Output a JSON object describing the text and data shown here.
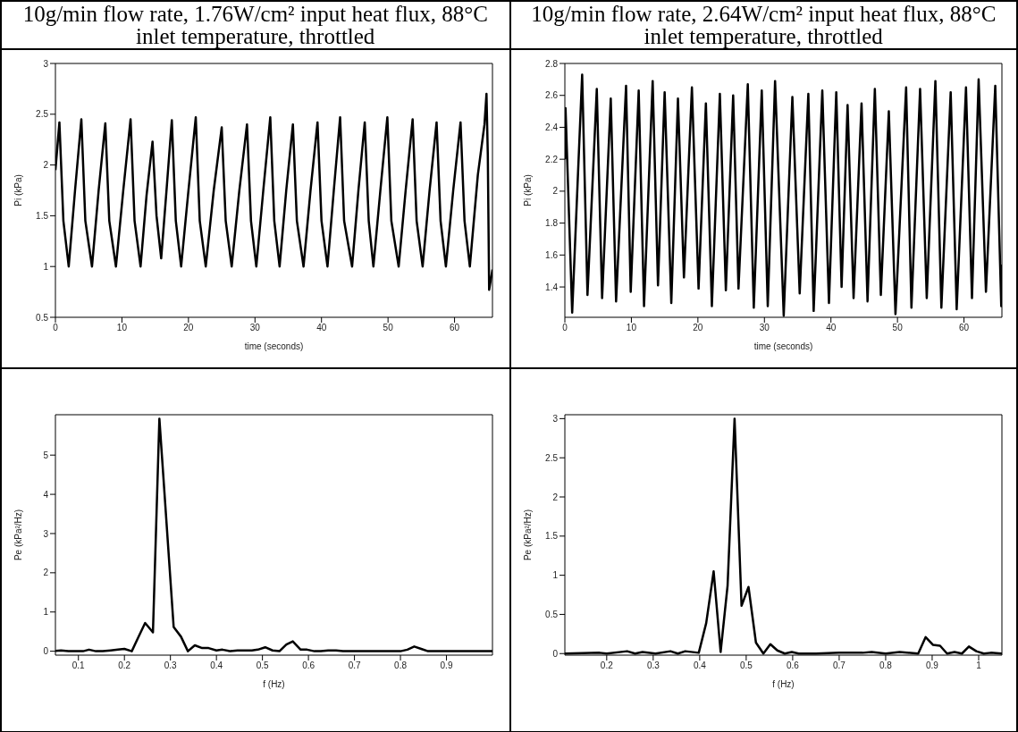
{
  "chart_data": [
    {
      "type": "line",
      "title": "10g/min flow rate, 1.76W/cm² input heat flux, 88°C inlet temperature, throttled",
      "xlabel": "time (seconds)",
      "ylabel": "Pi (kPa)",
      "xlim": [
        0,
        65.7
      ],
      "xticks": [
        0,
        10,
        20,
        30,
        40,
        50,
        60
      ],
      "ylim": [
        0.5,
        3
      ],
      "yticks": [
        0.5,
        1,
        1.5,
        2,
        2.5,
        3
      ],
      "color": "#000000",
      "x": [
        0,
        0.6,
        1.2,
        2.0,
        2.95,
        3.9,
        4.5,
        5.5,
        6.5,
        7.5,
        8.1,
        9.1,
        10.2,
        11.3,
        11.9,
        12.8,
        13.7,
        14.6,
        15.2,
        15.9,
        16.7,
        17.5,
        18.1,
        18.9,
        20.0,
        21.1,
        21.7,
        22.6,
        23.8,
        25.0,
        25.6,
        26.5,
        27.65,
        28.8,
        29.4,
        30.2,
        31.25,
        32.3,
        32.9,
        33.7,
        34.7,
        35.7,
        36.3,
        37.3,
        38.35,
        39.4,
        40.0,
        40.9,
        41.85,
        42.8,
        43.4,
        44.6,
        45.55,
        46.5,
        47.1,
        47.8,
        48.85,
        49.9,
        50.5,
        51.6,
        52.65,
        53.7,
        54.3,
        55.2,
        56.25,
        57.3,
        57.9,
        58.7,
        59.8,
        60.9,
        61.5,
        62.3,
        63.5,
        64.5,
        64.8,
        65.0,
        65.2,
        65.7
      ],
      "values": [
        1.95,
        2.42,
        1.45,
        1.0,
        1.75,
        2.45,
        1.45,
        1.0,
        1.75,
        2.41,
        1.45,
        1.0,
        1.75,
        2.45,
        1.45,
        1.0,
        1.7,
        2.23,
        1.5,
        1.08,
        1.75,
        2.44,
        1.45,
        1.0,
        1.75,
        2.47,
        1.45,
        1.0,
        1.75,
        2.37,
        1.45,
        1.0,
        1.75,
        2.4,
        1.45,
        1.0,
        1.75,
        2.47,
        1.45,
        1.0,
        1.75,
        2.4,
        1.45,
        1.0,
        1.75,
        2.42,
        1.45,
        1.0,
        1.75,
        2.47,
        1.45,
        1.0,
        1.75,
        2.42,
        1.45,
        1.0,
        1.75,
        2.47,
        1.45,
        1.0,
        1.75,
        2.45,
        1.45,
        1.0,
        1.75,
        2.42,
        1.45,
        1.0,
        1.75,
        2.42,
        1.45,
        1.0,
        1.9,
        2.4,
        2.7,
        2.1,
        0.77,
        0.97
      ]
    },
    {
      "type": "line",
      "title": "10g/min flow rate, 2.64W/cm² input heat flux, 88°C inlet temperature, throttled",
      "xlabel": "time (seconds)",
      "ylabel": "Pi (kPa)",
      "xlim": [
        0,
        65.7
      ],
      "xticks": [
        0,
        10,
        20,
        30,
        40,
        50,
        60
      ],
      "ylim": [
        1.21,
        2.8
      ],
      "yticks": [
        1.4,
        1.6,
        1.8,
        2,
        2.2,
        2.4,
        2.6,
        2.8
      ],
      "color": "#000000",
      "x": [
        0,
        0.1,
        1.1,
        2.6,
        3.4,
        4.8,
        5.6,
        6.9,
        7.7,
        9.2,
        9.9,
        11.1,
        11.9,
        13.2,
        14.0,
        15.0,
        16.0,
        17.0,
        17.9,
        19.1,
        20.1,
        21.2,
        22.1,
        23.3,
        24.2,
        25.3,
        26.1,
        27.5,
        28.4,
        29.6,
        30.5,
        31.6,
        32.9,
        34.2,
        35.3,
        36.6,
        37.4,
        38.7,
        39.7,
        40.8,
        41.6,
        42.5,
        43.4,
        44.6,
        45.5,
        46.6,
        47.5,
        48.7,
        49.7,
        51.3,
        52.1,
        53.4,
        54.4,
        55.7,
        56.6,
        58.0,
        58.9,
        60.3,
        61.2,
        62.2,
        63.3,
        64.7,
        65.6,
        65.7
      ],
      "values": [
        2.2,
        2.52,
        1.24,
        2.73,
        1.35,
        2.64,
        1.33,
        2.58,
        1.31,
        2.66,
        1.37,
        2.63,
        1.28,
        2.69,
        1.41,
        2.62,
        1.3,
        2.58,
        1.46,
        2.65,
        1.39,
        2.55,
        1.28,
        2.61,
        1.38,
        2.6,
        1.39,
        2.67,
        1.27,
        2.63,
        1.28,
        2.69,
        1.22,
        2.59,
        1.36,
        2.61,
        1.25,
        2.63,
        1.3,
        2.62,
        1.4,
        2.54,
        1.33,
        2.55,
        1.31,
        2.64,
        1.35,
        2.5,
        1.23,
        2.65,
        1.27,
        2.64,
        1.33,
        2.69,
        1.27,
        2.62,
        1.26,
        2.65,
        1.33,
        2.7,
        1.37,
        2.66,
        1.28,
        1.54
      ]
    },
    {
      "type": "line",
      "xlabel": "f (Hz)",
      "ylabel": "Pe (kPa²/Hz)",
      "xlim": [
        0.05,
        1.0
      ],
      "xticks": [
        0.1,
        0.2,
        0.3,
        0.4,
        0.5,
        0.6,
        0.7,
        0.8,
        0.9
      ],
      "ylim": [
        -0.1,
        6.03
      ],
      "yticks": [
        0,
        1,
        2,
        3,
        4,
        5
      ],
      "color": "#000000",
      "x": [
        0.05,
        0.062,
        0.078,
        0.094,
        0.11,
        0.123,
        0.138,
        0.153,
        0.17,
        0.186,
        0.2,
        0.216,
        0.23,
        0.245,
        0.262,
        0.276,
        0.307,
        0.323,
        0.338,
        0.353,
        0.369,
        0.383,
        0.4,
        0.413,
        0.43,
        0.446,
        0.461,
        0.477,
        0.49,
        0.506,
        0.522,
        0.537,
        0.552,
        0.566,
        0.583,
        0.597,
        0.613,
        0.627,
        0.643,
        0.66,
        0.675,
        0.7,
        0.75,
        0.8,
        0.815,
        0.83,
        0.845,
        0.86,
        0.9,
        0.95,
        1.0
      ],
      "values": [
        0.01,
        0.02,
        0,
        0,
        0,
        0.04,
        0,
        0,
        0.02,
        0.04,
        0.06,
        0,
        0.35,
        0.72,
        0.48,
        5.93,
        0.62,
        0.37,
        0,
        0.15,
        0.08,
        0.08,
        0.02,
        0.04,
        0,
        0.02,
        0.02,
        0.02,
        0.04,
        0.1,
        0.02,
        0,
        0.17,
        0.25,
        0.04,
        0.04,
        0,
        0,
        0.02,
        0.02,
        0,
        0,
        0,
        0,
        0.04,
        0.12,
        0.06,
        0,
        0,
        0,
        0
      ]
    },
    {
      "type": "line",
      "xlabel": "f (Hz)",
      "ylabel": "Pe (kPa²/Hz)",
      "xlim": [
        0.11,
        1.05
      ],
      "xticks": [
        0.2,
        0.3,
        0.4,
        0.5,
        0.6,
        0.7,
        0.8,
        0.9,
        1
      ],
      "ylim": [
        -0.02,
        3.05
      ],
      "yticks": [
        0,
        0.5,
        1,
        1.5,
        2,
        2.5,
        3
      ],
      "color": "#000000",
      "x": [
        0.11,
        0.185,
        0.2,
        0.244,
        0.261,
        0.277,
        0.305,
        0.337,
        0.353,
        0.369,
        0.398,
        0.414,
        0.43,
        0.445,
        0.46,
        0.475,
        0.49,
        0.505,
        0.521,
        0.537,
        0.552,
        0.567,
        0.583,
        0.598,
        0.613,
        0.65,
        0.7,
        0.75,
        0.77,
        0.8,
        0.83,
        0.87,
        0.886,
        0.902,
        0.917,
        0.932,
        0.948,
        0.964,
        0.979,
        0.995,
        1.011,
        1.026,
        1.05
      ],
      "values": [
        0,
        0.01,
        0,
        0.03,
        0,
        0.02,
        0,
        0.03,
        0,
        0.03,
        0.01,
        0.39,
        1.05,
        0.02,
        0.87,
        3.0,
        0.61,
        0.85,
        0.14,
        0,
        0.12,
        0.04,
        0,
        0.02,
        0,
        0,
        0.01,
        0.01,
        0.02,
        0,
        0.02,
        0,
        0.21,
        0.11,
        0.1,
        0,
        0.02,
        0,
        0.09,
        0.03,
        0,
        0.01,
        0
      ]
    }
  ]
}
